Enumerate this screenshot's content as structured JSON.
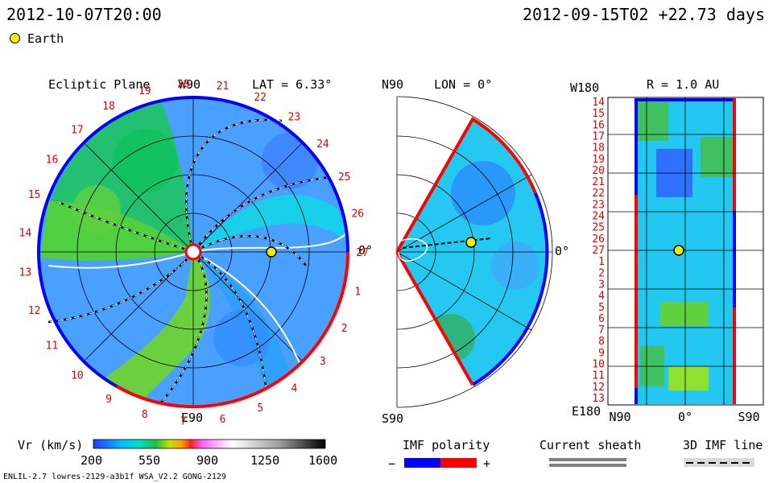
{
  "header": {
    "time_left": "2012-10-07T20:00",
    "time_right": "2012-09-15T02 +22.73 days",
    "legend_earth": "Earth"
  },
  "panels": {
    "ecliptic": {
      "title": "Ecliptic Plane",
      "top_label": "W90",
      "lat": "LAT = 6.33°",
      "bottom_label": "E90",
      "right_label": "0°",
      "carrington": [
        "20",
        "21",
        "22",
        "23",
        "24",
        "25",
        "26",
        "27",
        "1",
        "2",
        "3",
        "4",
        "5",
        "6",
        "7",
        "8",
        "9",
        "10",
        "11",
        "12",
        "13",
        "14",
        "15",
        "16",
        "17",
        "18",
        "19"
      ]
    },
    "meridional": {
      "top_label": "N90",
      "lon": "LON = 0°",
      "bottom_label": "S90",
      "right_label": "0°"
    },
    "sphere": {
      "title": "R = 1.0 AU",
      "top_left": "W180",
      "bottom_left": "E180",
      "x_labels": [
        "N90",
        "0°",
        "S90"
      ],
      "y_labels": [
        "14",
        "15",
        "16",
        "17",
        "18",
        "19",
        "20",
        "21",
        "22",
        "23",
        "24",
        "25",
        "26",
        "27",
        "1",
        "2",
        "3",
        "4",
        "5",
        "6",
        "7",
        "8",
        "9",
        "10",
        "11",
        "12",
        "13"
      ]
    }
  },
  "colorbar": {
    "label": "Vr (km/s)",
    "ticks": [
      "200",
      "550",
      "900",
      "1250",
      "1600"
    ],
    "range": [
      200,
      1600
    ]
  },
  "legends": {
    "imf_polarity": "IMF polarity",
    "minus": "−",
    "plus": "+",
    "current_sheath": "Current sheath",
    "imf_line": "3D IMF line",
    "colors": {
      "negative": "#0000ff",
      "positive": "#ff0000",
      "sheath": "#808080"
    }
  },
  "footer": {
    "model": "ENLIL-2.7 lowres-2129-a3b1f WSA_V2.2 GONG-2129"
  },
  "chart_data": {
    "type": "heatmap",
    "quantity": "Vr (km/s)",
    "value_range": [
      200,
      1600
    ],
    "earth_marker": {
      "carrington": "27",
      "r_au": 1.0
    },
    "plots": [
      "Ecliptic Plane",
      "LON = 0°",
      "R = 1.0 AU"
    ]
  }
}
